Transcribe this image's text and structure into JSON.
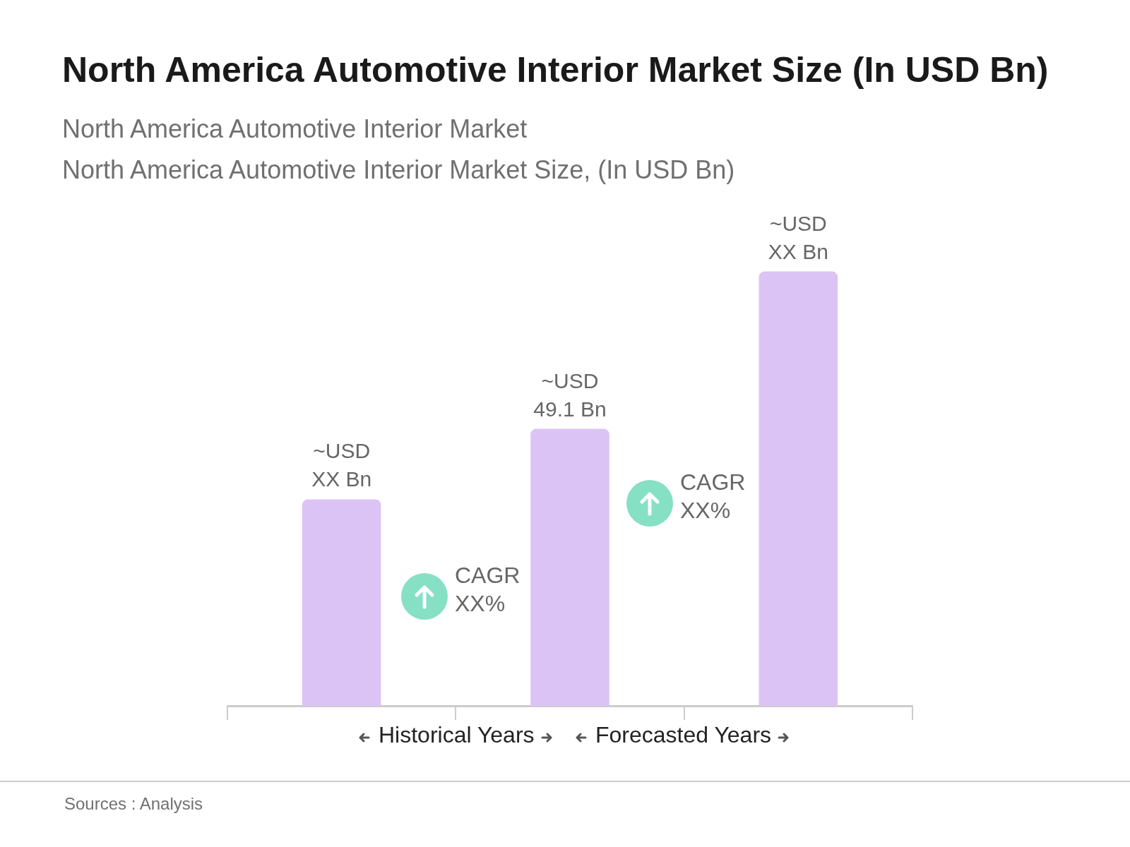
{
  "chart_data": {
    "type": "bar",
    "title": "North America Automotive Interior Market Size (In USD Bn)",
    "subtitle": "North America Automotive Interior Market\nNorth America Automotive Interior Market Size, (In USD Bn)",
    "categories": [
      null,
      null,
      null
    ],
    "values": [
      36.6,
      49.1,
      77.0
    ],
    "color": "#dcc3f5",
    "value_labels": [
      "~USD XX Bn",
      "~USD 49.1 Bn",
      "~USD XX Bn"
    ],
    "grid": false,
    "legend": false,
    "tick_labels": false,
    "annotations": [
      "CAGR XX%",
      "CAGR XX%",
      "Historical Years",
      "Forecasted Years",
      "Sources : Analysis"
    ]
  }
}
